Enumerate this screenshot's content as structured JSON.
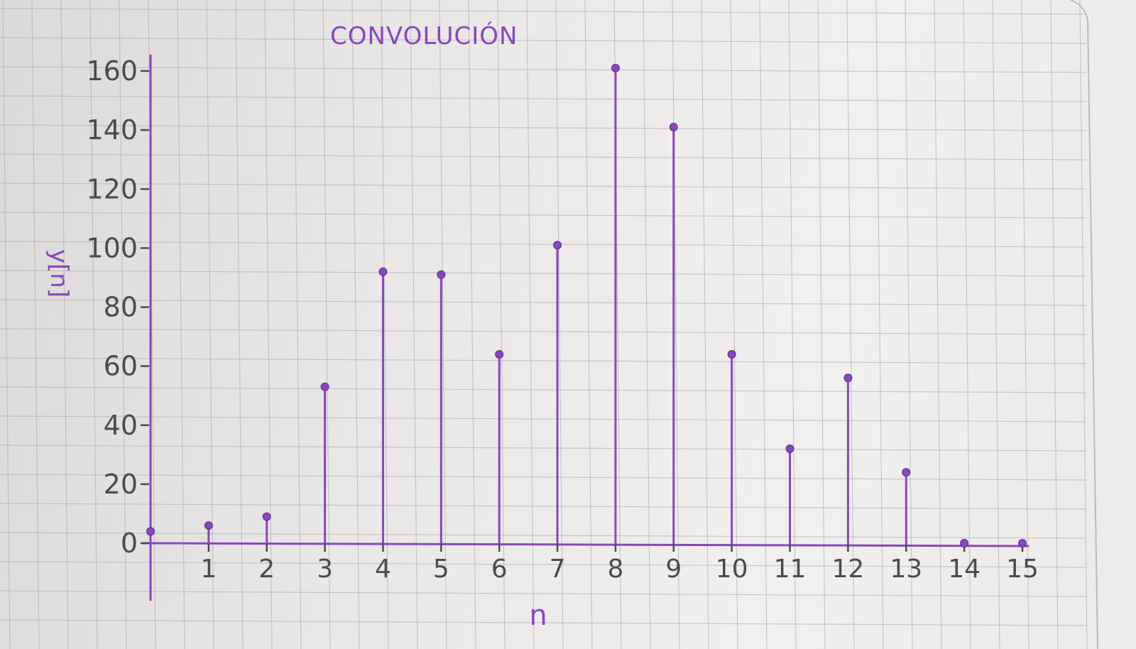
{
  "chart_data": {
    "type": "stem",
    "title": "CONVOLUCIÓN",
    "xlabel": "n",
    "ylabel": "y[n]",
    "x": [
      0,
      1,
      2,
      3,
      4,
      5,
      6,
      7,
      8,
      9,
      10,
      11,
      12,
      13,
      14,
      15
    ],
    "values": [
      4,
      6,
      9,
      53,
      92,
      91,
      64,
      101,
      161,
      141,
      64,
      32,
      56,
      24,
      0,
      0
    ],
    "x_ticks": [
      "1",
      "2",
      "3",
      "4",
      "5",
      "6",
      "7",
      "8",
      "9",
      "10",
      "11",
      "12",
      "13",
      "14",
      "15"
    ],
    "y_ticks": [
      "0",
      "20",
      "40",
      "60",
      "80",
      "100",
      "120",
      "140",
      "160"
    ],
    "xlim": [
      0,
      15
    ],
    "ylim": [
      0,
      160
    ],
    "grid": true,
    "legend": "none",
    "colors": {
      "ink": "#8a45c2",
      "labels": "#4a4b50",
      "grid": "#a9a7a5"
    }
  }
}
